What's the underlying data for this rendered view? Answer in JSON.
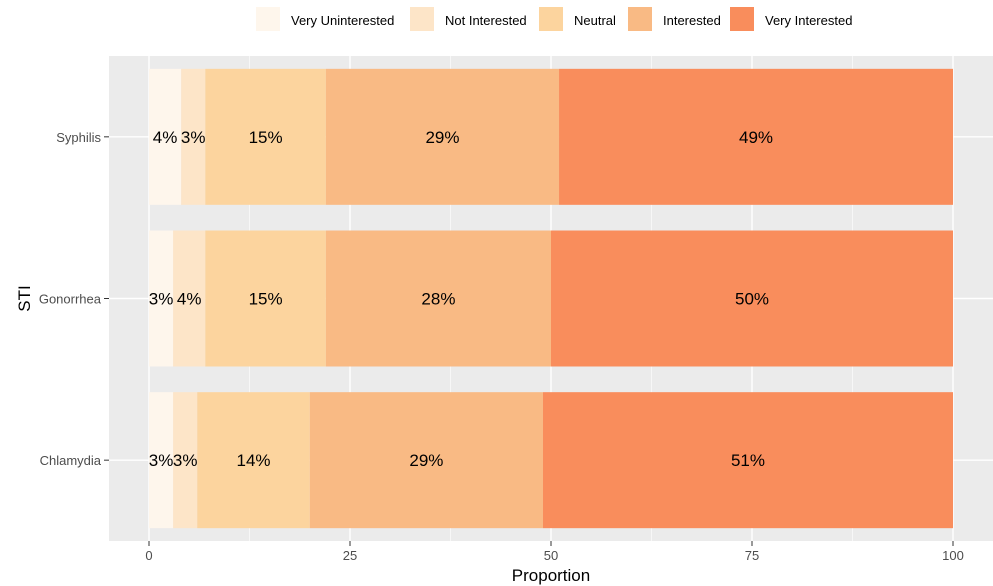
{
  "chart_data": {
    "type": "bar",
    "orientation": "horizontal",
    "stacked": true,
    "xlabel": "Proportion",
    "ylabel": "STI",
    "xlim": [
      0,
      100
    ],
    "xticks": [
      "0",
      "25",
      "50",
      "75",
      "100"
    ],
    "categories": [
      "Syphilis",
      "Gonorrhea",
      "Chlamydia"
    ],
    "legend_position": "top",
    "grid": true,
    "series": [
      {
        "name": "Very Uninterested",
        "color": "#FEF6EC",
        "values": [
          4,
          3,
          3
        ],
        "labels": [
          "4%",
          "3%",
          "3%"
        ]
      },
      {
        "name": "Not Interested",
        "color": "#FDE5C8",
        "values": [
          3,
          4,
          3
        ],
        "labels": [
          "3%",
          "4%",
          "3%"
        ]
      },
      {
        "name": "Neutral",
        "color": "#FCD49E",
        "values": [
          15,
          15,
          14
        ],
        "labels": [
          "15%",
          "15%",
          "14%"
        ]
      },
      {
        "name": "Interested",
        "color": "#F9BA84",
        "values": [
          29,
          28,
          29
        ],
        "labels": [
          "29%",
          "28%",
          "29%"
        ]
      },
      {
        "name": "Very Interested",
        "color": "#F98D5C",
        "values": [
          49,
          50,
          51
        ],
        "labels": [
          "49%",
          "50%",
          "51%"
        ]
      }
    ]
  }
}
